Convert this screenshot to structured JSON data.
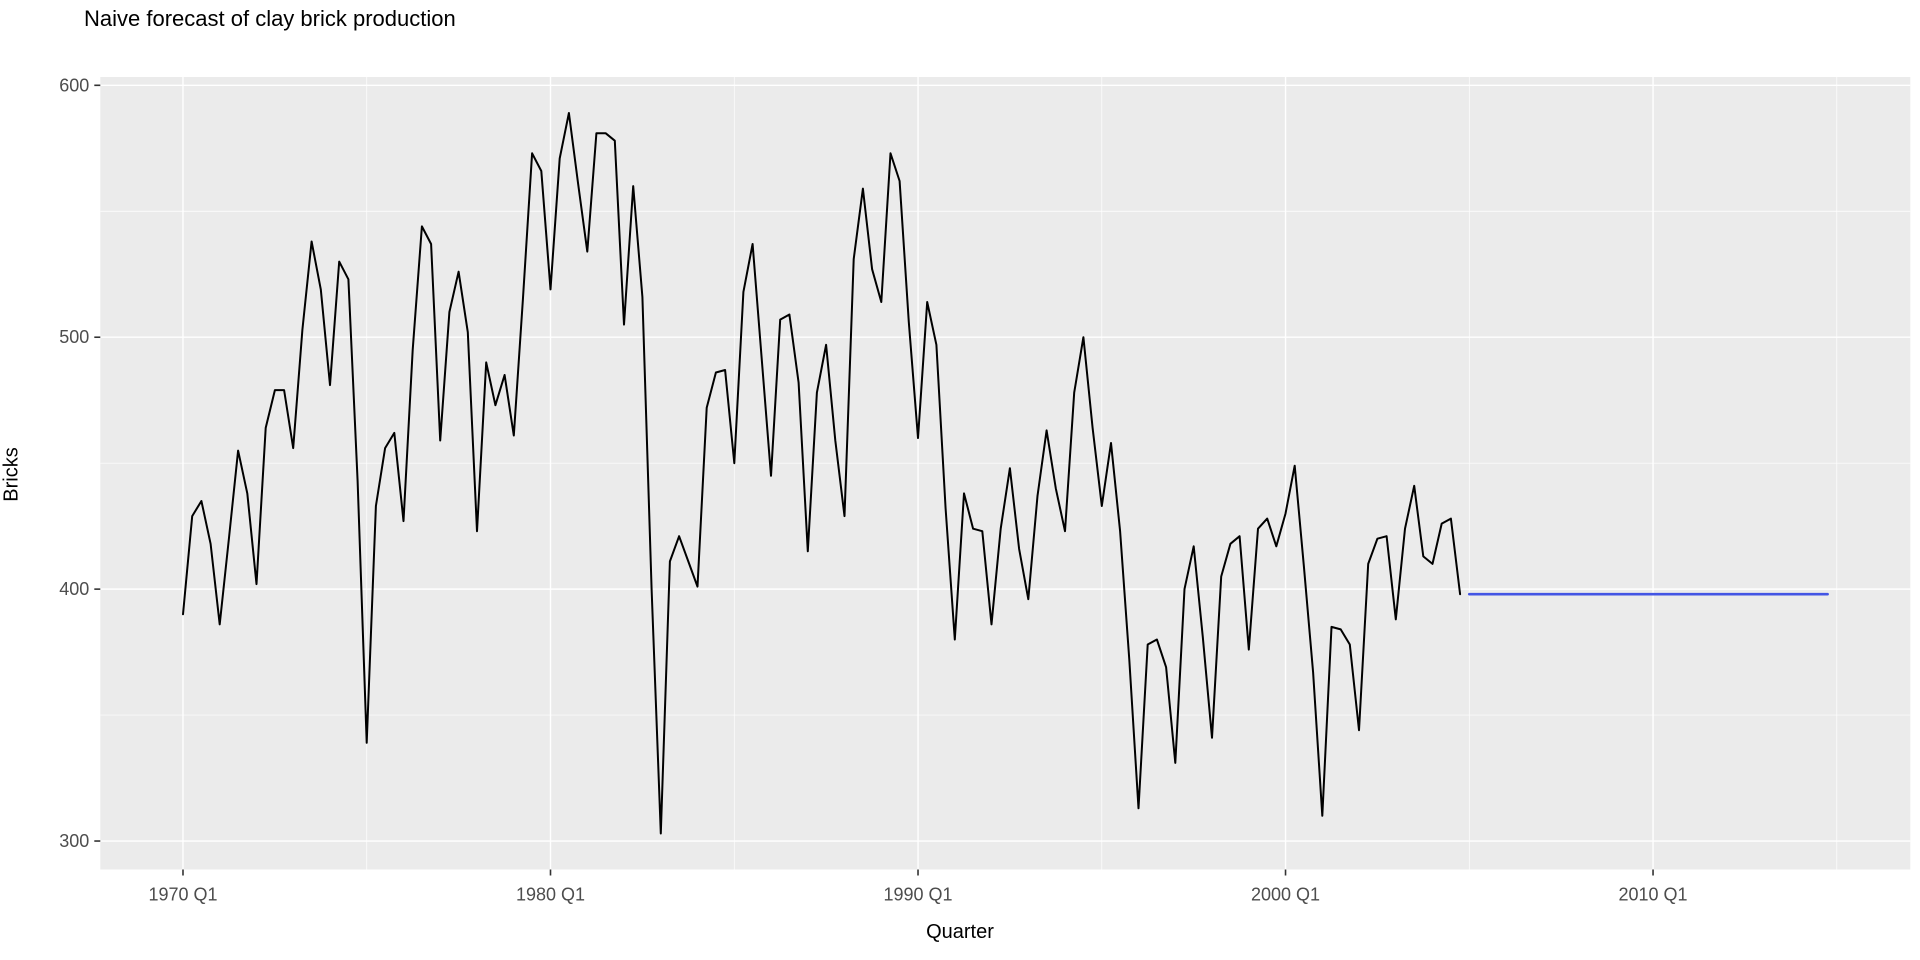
{
  "title": "Naive forecast of clay brick production",
  "axes": {
    "x_title": "Quarter",
    "y_title": "Bricks"
  },
  "colors": {
    "panel_bg": "#EBEBEB",
    "grid": "#FFFFFF",
    "observed_line": "#000000",
    "forecast_line": "#4355E4",
    "axis_text": "#4D4D4D",
    "tick_mark": "#333333",
    "title_text": "#000000"
  },
  "chart_data": {
    "type": "line",
    "title": "Naive forecast of clay brick production",
    "xlabel": "Quarter",
    "ylabel": "Bricks",
    "grid": "on",
    "legend_position": "none",
    "x_unit": "quarter_index_from_1970Q1",
    "xlim_quarters": [
      -9,
      188
    ],
    "ylim": [
      288.7,
      603.3
    ],
    "y_major_ticks": [
      300,
      400,
      500,
      600
    ],
    "y_minor_gridlines": [
      350,
      450,
      550
    ],
    "x_major_ticks": [
      {
        "q": 0,
        "label": "1970 Q1"
      },
      {
        "q": 40,
        "label": "1980 Q1"
      },
      {
        "q": 80,
        "label": "1990 Q1"
      },
      {
        "q": 120,
        "label": "2000 Q1"
      },
      {
        "q": 160,
        "label": "2010 Q1"
      }
    ],
    "x_minor_gridlines_q": [
      20,
      60,
      100,
      140,
      180
    ],
    "series": [
      {
        "name": "Bricks (observed, quarterly clay brick production)",
        "color": "#000000",
        "start": "1970 Q1",
        "end": "2004 Q4",
        "start_index": 0,
        "values": [
          390,
          429,
          435,
          418,
          386,
          420,
          455,
          438,
          402,
          464,
          479,
          479,
          456,
          503,
          538,
          519,
          481,
          530,
          523,
          443,
          339,
          433,
          456,
          462,
          427,
          495,
          544,
          537,
          459,
          510,
          526,
          502,
          423,
          490,
          473,
          485,
          461,
          515,
          573,
          566,
          519,
          571,
          589,
          561,
          534,
          581,
          581,
          578,
          505,
          560,
          516,
          400,
          303,
          411,
          421,
          411,
          401,
          472,
          486,
          487,
          450,
          518,
          537,
          491,
          445,
          507,
          509,
          482,
          415,
          478,
          497,
          459,
          429,
          531,
          559,
          527,
          514,
          573,
          562,
          506,
          460,
          514,
          497,
          432,
          380,
          438,
          424,
          423,
          386,
          424,
          448,
          416,
          396,
          437,
          463,
          440,
          423,
          478,
          500,
          464,
          433,
          458,
          423,
          372,
          313,
          378,
          380,
          369,
          331,
          400,
          417,
          381,
          341,
          405,
          418,
          421,
          376,
          424,
          428,
          417,
          430,
          449,
          409,
          367,
          310,
          385,
          384,
          378,
          344,
          410,
          420,
          421,
          388,
          424,
          441,
          413,
          410,
          426,
          428,
          398
        ]
      }
    ],
    "forecast": {
      "name": "Naive forecast (mean)",
      "color": "#4355E4",
      "start": "2005 Q1",
      "end": "2014 Q4",
      "start_index": 140,
      "end_index": 179,
      "mean": 398
    }
  },
  "layout_note": "ggplot2-style theme_grey panel"
}
